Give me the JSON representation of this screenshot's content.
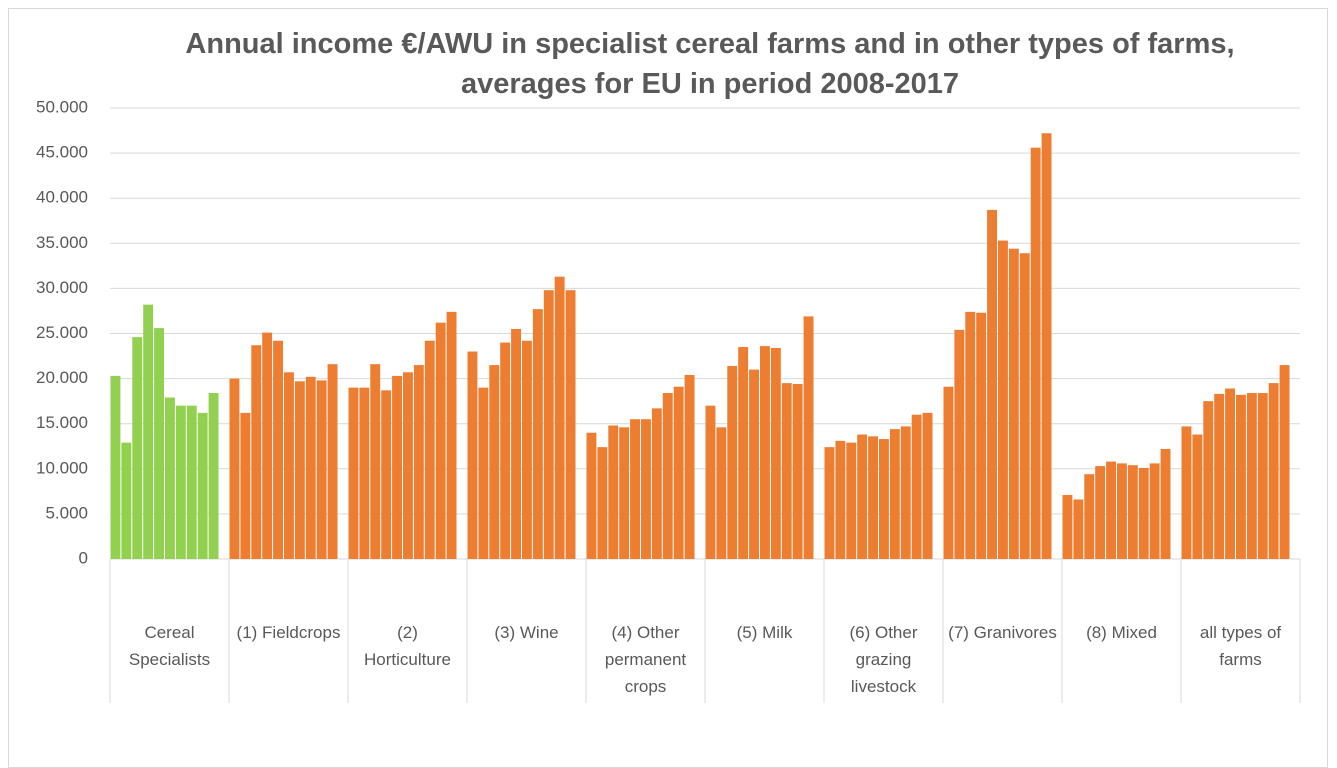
{
  "chart_data": {
    "type": "grouped-bar",
    "title": "Annual income €/AWU in specialist cereal farms and in other types of farms, averages for EU in period 2008-2017",
    "groups": [
      {
        "label": "Cereal Specialists",
        "color": "#92d050",
        "values": [
          20300,
          12900,
          24600,
          28200,
          25600,
          17900,
          17000,
          17000,
          16200,
          18400
        ]
      },
      {
        "label": "(1) Fieldcrops",
        "color": "#ed7d31",
        "values": [
          20000,
          16200,
          23700,
          25100,
          24200,
          20700,
          19700,
          20200,
          19800,
          21600
        ]
      },
      {
        "label": "(2) Horticulture",
        "color": "#ed7d31",
        "values": [
          19000,
          19000,
          21600,
          18700,
          20300,
          20700,
          21500,
          24200,
          26200,
          27400
        ]
      },
      {
        "label": "(3) Wine",
        "color": "#ed7d31",
        "values": [
          23000,
          19000,
          21500,
          24000,
          25500,
          24200,
          27700,
          29800,
          31300,
          29800
        ]
      },
      {
        "label": "(4) Other permanent crops",
        "color": "#ed7d31",
        "values": [
          14000,
          12400,
          14800,
          14600,
          15500,
          15500,
          16700,
          18400,
          19100,
          20400
        ]
      },
      {
        "label": "(5) Milk",
        "color": "#ed7d31",
        "values": [
          17000,
          14600,
          21400,
          23500,
          21000,
          23600,
          23400,
          19500,
          19400,
          26900
        ]
      },
      {
        "label": "(6) Other grazing livestock",
        "color": "#ed7d31",
        "values": [
          12400,
          13100,
          12900,
          13800,
          13600,
          13300,
          14400,
          14700,
          16000,
          16200
        ]
      },
      {
        "label": "(7) Granivores",
        "color": "#ed7d31",
        "values": [
          19100,
          25400,
          27400,
          27300,
          38700,
          35300,
          34400,
          33900,
          45600,
          47200
        ]
      },
      {
        "label": "(8) Mixed",
        "color": "#ed7d31",
        "values": [
          7100,
          6600,
          9400,
          10300,
          10800,
          10600,
          10400,
          10100,
          10600,
          12200
        ]
      },
      {
        "label": "all types of farms",
        "color": "#ed7d31",
        "values": [
          14700,
          13800,
          17500,
          18300,
          18900,
          18200,
          18400,
          18400,
          19500,
          21500
        ]
      }
    ],
    "ylim": [
      0,
      50000
    ],
    "yticks": [
      0,
      {
        "value": 5000,
        "label": "5.000"
      },
      {
        "value": 10000,
        "label": "10.000"
      },
      {
        "value": 15000,
        "label": "15.000"
      },
      {
        "value": 20000,
        "label": "20.000"
      },
      {
        "value": 25000,
        "label": "25.000"
      },
      {
        "value": 30000,
        "label": "30.000"
      },
      {
        "value": 35000,
        "label": "35.000"
      },
      {
        "value": 40000,
        "label": "40.000"
      },
      {
        "value": 45000,
        "label": "45.000"
      },
      {
        "value": 50000,
        "label": "50.000"
      }
    ],
    "grid": true
  }
}
